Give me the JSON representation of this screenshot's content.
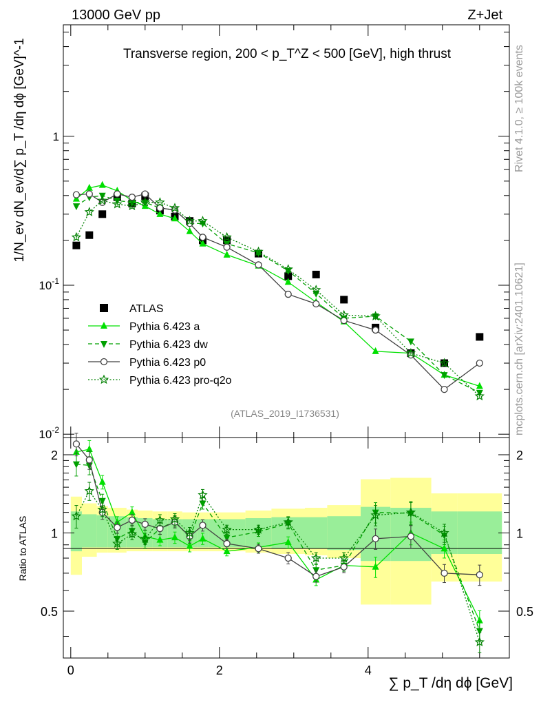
{
  "header": {
    "left": "13000 GeV pp",
    "right": "Z+Jet"
  },
  "side_labels": {
    "rivet": "Rivet 4.1.0, ≥ 100k events",
    "site": "mcplots.cern.ch [arXiv:2401.10621]"
  },
  "chart_data": {
    "type": "scatter",
    "title": "Transverse region, 200 < p_T^Z < 500 [GeV], high thrust",
    "analysis_id": "(ATLAS_2019_I1736531)",
    "xlabel": "∑ p_T /dη dϕ [GeV]",
    "ylabel": "1/N_ev dN_ev/d∑ p_T /dη dϕ [GeV]^-1",
    "ratio_ylabel": "Ratio to ATLAS",
    "xlim": [
      -0.1,
      5.9
    ],
    "ylim": [
      0.0095,
      5.6
    ],
    "ratio_ylim": [
      0.33,
      2.33
    ],
    "yscale": "log",
    "x_ticks": [
      0,
      2,
      4
    ],
    "y_tick_labels": [
      "10^-2",
      "10^-1",
      "1"
    ],
    "ratio_ticks": [
      "0.5",
      "1",
      "2"
    ],
    "x": [
      0.075,
      0.25,
      0.425,
      0.625,
      0.825,
      1.0,
      1.2,
      1.4,
      1.6,
      1.775,
      2.1,
      2.525,
      2.925,
      3.3,
      3.675,
      4.1,
      4.575,
      5.025,
      5.5
    ],
    "bin_edges": [
      0.0,
      0.15,
      0.35,
      0.5,
      0.75,
      0.9,
      1.1,
      1.3,
      1.5,
      1.7,
      1.85,
      2.35,
      2.7,
      3.15,
      3.45,
      3.9,
      4.3,
      4.85,
      5.2,
      5.8
    ],
    "band_inner": [
      [
        0.85,
        1.21
      ],
      [
        0.88,
        1.18
      ],
      [
        0.88,
        1.17
      ],
      [
        0.88,
        1.16
      ],
      [
        0.88,
        1.15
      ],
      [
        0.88,
        1.14
      ],
      [
        0.88,
        1.13
      ],
      [
        0.88,
        1.13
      ],
      [
        0.88,
        1.13
      ],
      [
        0.88,
        1.13
      ],
      [
        0.88,
        1.13
      ],
      [
        0.88,
        1.14
      ],
      [
        0.87,
        1.15
      ],
      [
        0.87,
        1.15
      ],
      [
        0.86,
        1.16
      ],
      [
        0.78,
        1.26
      ],
      [
        0.78,
        1.25
      ],
      [
        0.83,
        1.21
      ],
      [
        0.83,
        1.21
      ]
    ],
    "band_outer": [
      [
        0.69,
        1.38
      ],
      [
        0.81,
        1.3
      ],
      [
        0.84,
        1.27
      ],
      [
        0.84,
        1.25
      ],
      [
        0.85,
        1.23
      ],
      [
        0.85,
        1.22
      ],
      [
        0.85,
        1.21
      ],
      [
        0.85,
        1.21
      ],
      [
        0.85,
        1.2
      ],
      [
        0.85,
        1.2
      ],
      [
        0.85,
        1.2
      ],
      [
        0.84,
        1.22
      ],
      [
        0.83,
        1.24
      ],
      [
        0.82,
        1.25
      ],
      [
        0.8,
        1.28
      ],
      [
        0.53,
        1.61
      ],
      [
        0.53,
        1.63
      ],
      [
        0.65,
        1.42
      ],
      [
        0.65,
        1.42
      ]
    ],
    "series": [
      {
        "name": "ATLAS",
        "color": "#000000",
        "marker": "square",
        "dash": "none",
        "values": [
          0.185,
          0.217,
          0.3,
          0.39,
          0.354,
          0.395,
          0.317,
          0.289,
          0.27,
          0.2,
          0.2,
          0.163,
          0.115,
          0.118,
          0.08,
          0.052,
          0.035,
          0.03,
          0.045
        ]
      },
      {
        "name": "Pythia 6.423 a",
        "color": "#00e000",
        "marker": "triangle-up",
        "dash": "none",
        "values": [
          0.38,
          0.45,
          0.47,
          0.43,
          0.37,
          0.34,
          0.3,
          0.28,
          0.23,
          0.19,
          0.16,
          0.135,
          0.105,
          0.077,
          0.057,
          0.036,
          0.035,
          0.025,
          0.021
        ],
        "ratio": [
          2.05,
          2.1,
          1.57,
          1.1,
          1.2,
          0.97,
          0.94,
          0.96,
          0.89,
          0.95,
          0.85,
          0.88,
          0.92,
          0.66,
          0.75,
          0.74,
          1.0,
          0.87,
          0.46
        ],
        "errors": [
          0.1,
          0.08,
          0.06,
          0.05,
          0.05,
          0.05,
          0.05,
          0.05,
          0.05,
          0.05,
          0.04,
          0.04,
          0.05,
          0.05,
          0.05,
          0.09,
          0.1,
          0.08,
          0.09
        ]
      },
      {
        "name": "Pythia 6.423 dw",
        "color": "#00a000",
        "marker": "triangle-down",
        "dash": "dashed",
        "values": [
          0.34,
          0.39,
          0.4,
          0.37,
          0.36,
          0.36,
          0.33,
          0.32,
          0.26,
          0.26,
          0.19,
          0.165,
          0.125,
          0.088,
          0.06,
          0.062,
          0.042,
          0.025,
          0.019
        ],
        "ratio": [
          1.84,
          1.82,
          1.33,
          0.95,
          1.02,
          0.92,
          1.04,
          1.11,
          0.96,
          1.3,
          0.96,
          1.01,
          1.09,
          0.72,
          0.75,
          1.2,
          1.19,
          0.98,
          0.42
        ],
        "errors": [
          0.1,
          0.08,
          0.06,
          0.05,
          0.05,
          0.05,
          0.05,
          0.05,
          0.05,
          0.05,
          0.04,
          0.04,
          0.05,
          0.05,
          0.05,
          0.09,
          0.1,
          0.08,
          0.09
        ]
      },
      {
        "name": "Pythia 6.423 p0",
        "color": "#404040",
        "marker": "circle-open",
        "dash": "none",
        "values": [
          0.405,
          0.41,
          0.36,
          0.41,
          0.39,
          0.41,
          0.33,
          0.32,
          0.26,
          0.21,
          0.18,
          0.137,
          0.087,
          0.075,
          0.058,
          0.05,
          0.034,
          0.02,
          0.03
        ],
        "ratio": [
          2.2,
          1.91,
          1.2,
          1.05,
          1.12,
          1.08,
          1.04,
          1.1,
          0.97,
          1.07,
          0.91,
          0.87,
          0.8,
          0.68,
          0.74,
          0.95,
          0.97,
          0.7,
          0.69
        ],
        "errors": [
          0.1,
          0.08,
          0.06,
          0.05,
          0.05,
          0.05,
          0.05,
          0.05,
          0.05,
          0.05,
          0.04,
          0.04,
          0.05,
          0.05,
          0.05,
          0.09,
          0.1,
          0.08,
          0.09
        ]
      },
      {
        "name": "Pythia 6.423 pro-q2o",
        "color": "#008000",
        "marker": "star",
        "dash": "dotted",
        "values": [
          0.21,
          0.31,
          0.37,
          0.35,
          0.34,
          0.36,
          0.36,
          0.33,
          0.27,
          0.27,
          0.21,
          0.168,
          0.128,
          0.093,
          0.063,
          0.062,
          0.035,
          0.03,
          0.018
        ],
        "ratio": [
          1.16,
          1.45,
          1.23,
          0.91,
          0.99,
          0.95,
          1.12,
          1.13,
          1.0,
          1.4,
          1.03,
          1.03,
          1.1,
          0.8,
          0.8,
          1.17,
          1.2,
          1.0,
          0.38
        ],
        "errors": [
          0.1,
          0.08,
          0.06,
          0.05,
          0.05,
          0.05,
          0.05,
          0.05,
          0.05,
          0.05,
          0.04,
          0.04,
          0.05,
          0.05,
          0.05,
          0.09,
          0.1,
          0.08,
          0.09
        ]
      }
    ]
  }
}
